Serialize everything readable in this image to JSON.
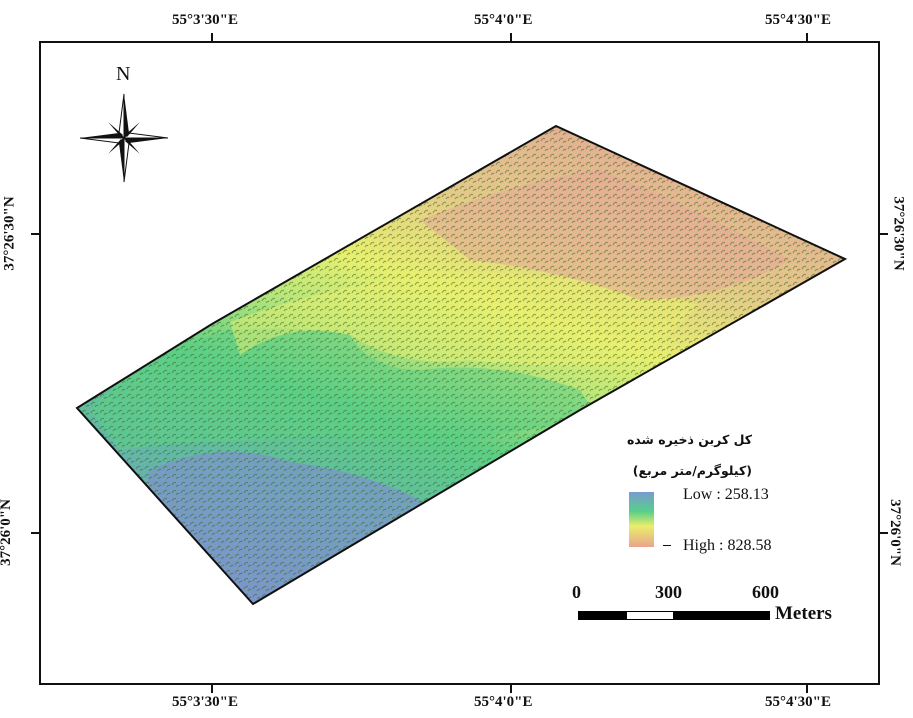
{
  "map": {
    "graticule": {
      "top_longitudes": [
        "55°3'30\"E",
        "55°4'0\"E",
        "55°4'30\"E"
      ],
      "bottom_longitudes": [
        "55°3'30\"E",
        "55°4'0\"E",
        "55°4'30\"E"
      ],
      "left_latitudes": [
        "37°26'30\"N",
        "37°26'0\"N"
      ],
      "right_latitudes": [
        "37°26'30\"N",
        "37°26'0\"N"
      ]
    },
    "north_arrow": {
      "label": "N"
    },
    "legend": {
      "title_line1": "کل کربن ذخیره شده",
      "title_line2": "(کیلوگرم/متر مربع)",
      "low_label": "Low : 258.13",
      "high_label": "High : 828.58",
      "low_value": 258.13,
      "high_value": 828.58,
      "colors": [
        "#7a9bd0",
        "#56cf8a",
        "#e9ee6a",
        "#e9a48d"
      ]
    },
    "scale_bar": {
      "labels": [
        "0",
        "300",
        "600"
      ],
      "unit": "Meters"
    }
  }
}
